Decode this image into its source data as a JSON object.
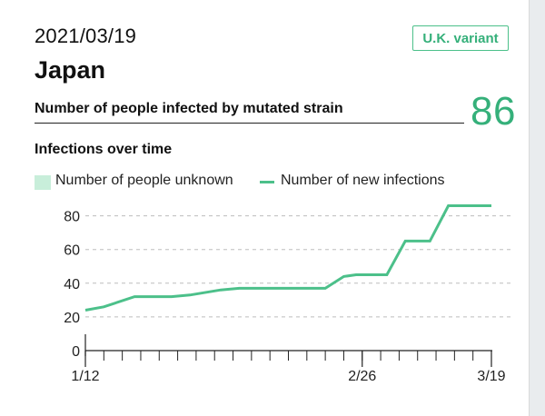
{
  "header": {
    "date": "2021/03/19",
    "variant_badge": "U.K. variant",
    "country": "Japan"
  },
  "metric": {
    "label": "Number of people infected by mutated strain",
    "value": "86",
    "value_color": "#35b07a"
  },
  "section_title": "Infections over time",
  "legend": {
    "unknown": "Number of people unknown",
    "new": "Number of new infections",
    "unknown_color": "#c8eeda",
    "new_color": "#4cc08a"
  },
  "chart_data": {
    "type": "line",
    "title": "",
    "xlabel": "",
    "ylabel": "",
    "ylim": [
      0,
      90
    ],
    "yticks": [
      0,
      20,
      40,
      60,
      80
    ],
    "grid": true,
    "legend_position": "top",
    "x_tick_labels": [
      {
        "label": "1/12",
        "day": 0
      },
      {
        "label": "2/26",
        "day": 45
      },
      {
        "label": "3/19",
        "day": 66
      }
    ],
    "x_minor_ticks": [
      0,
      3,
      6,
      9,
      12,
      15,
      18,
      21,
      24,
      27,
      30,
      33,
      36,
      39,
      42,
      45,
      48,
      51,
      54,
      57,
      60,
      63,
      66
    ],
    "x_range": [
      0,
      66
    ],
    "series": [
      {
        "name": "Number of new infections",
        "color": "#4cc08a",
        "points": [
          [
            0,
            24
          ],
          [
            3,
            26
          ],
          [
            8,
            32
          ],
          [
            14,
            32
          ],
          [
            17,
            33
          ],
          [
            22,
            36
          ],
          [
            25,
            37
          ],
          [
            39,
            37
          ],
          [
            42,
            44
          ],
          [
            44,
            45
          ],
          [
            49,
            45
          ],
          [
            52,
            65
          ],
          [
            56,
            65
          ],
          [
            59,
            86
          ],
          [
            66,
            86
          ]
        ]
      },
      {
        "name": "Number of people unknown",
        "color": "#c8eeda",
        "points": []
      }
    ]
  }
}
